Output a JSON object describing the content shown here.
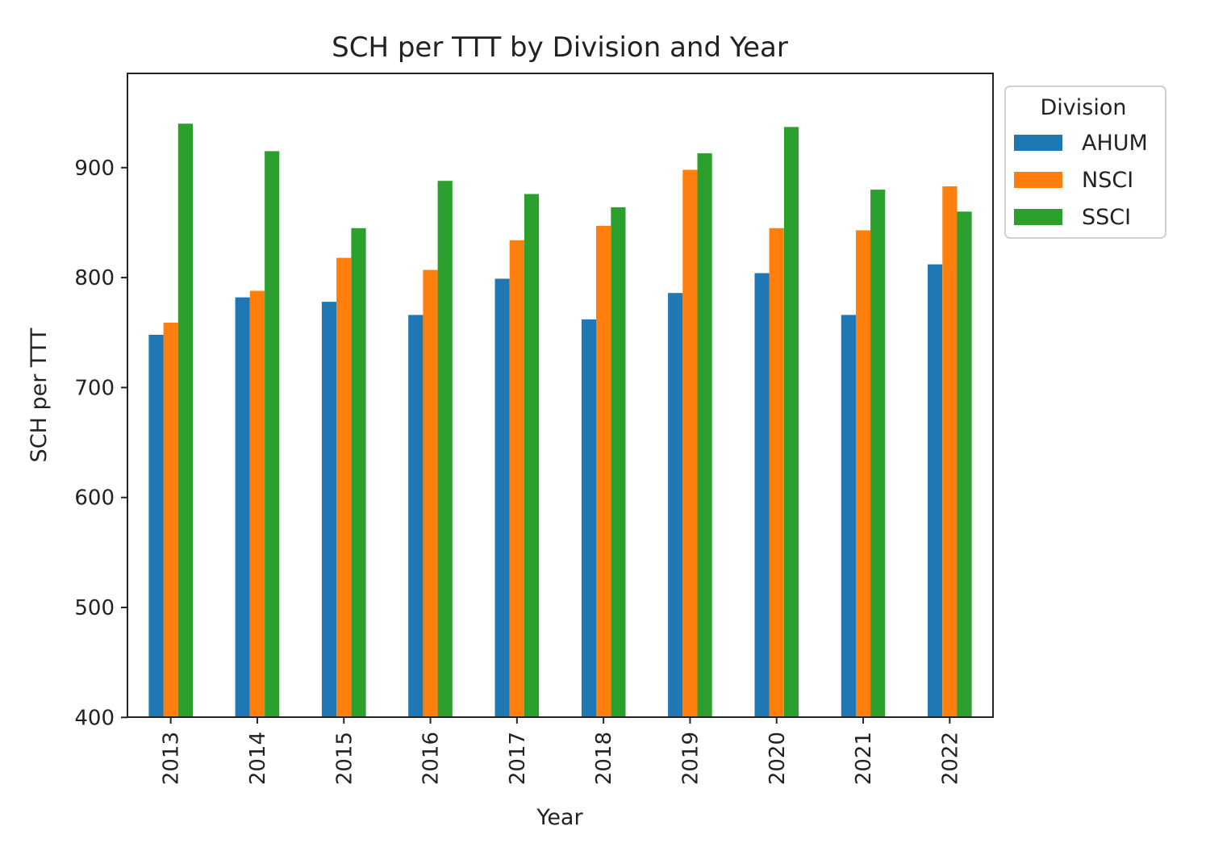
{
  "chart_data": {
    "type": "bar",
    "title": "SCH per TTT by Division and Year",
    "xlabel": "Year",
    "ylabel": "SCH per TTT",
    "ylim": [
      400,
      990
    ],
    "yticks": [
      400,
      500,
      600,
      700,
      800,
      900
    ],
    "categories": [
      "2013",
      "2014",
      "2015",
      "2016",
      "2017",
      "2018",
      "2019",
      "2020",
      "2021",
      "2022"
    ],
    "series": [
      {
        "name": "AHUM",
        "color": "#1f77b4",
        "values": [
          748,
          782,
          778,
          766,
          799,
          762,
          786,
          804,
          766,
          812
        ]
      },
      {
        "name": "NSCI",
        "color": "#ff7f0e",
        "values": [
          759,
          788,
          818,
          807,
          834,
          847,
          898,
          845,
          843,
          883
        ]
      },
      {
        "name": "SSCI",
        "color": "#2ca02c",
        "values": [
          940,
          915,
          845,
          888,
          876,
          864,
          913,
          937,
          880,
          860
        ]
      }
    ],
    "legend": {
      "title": "Division",
      "placement": "outside-top-right"
    },
    "grid": false
  }
}
